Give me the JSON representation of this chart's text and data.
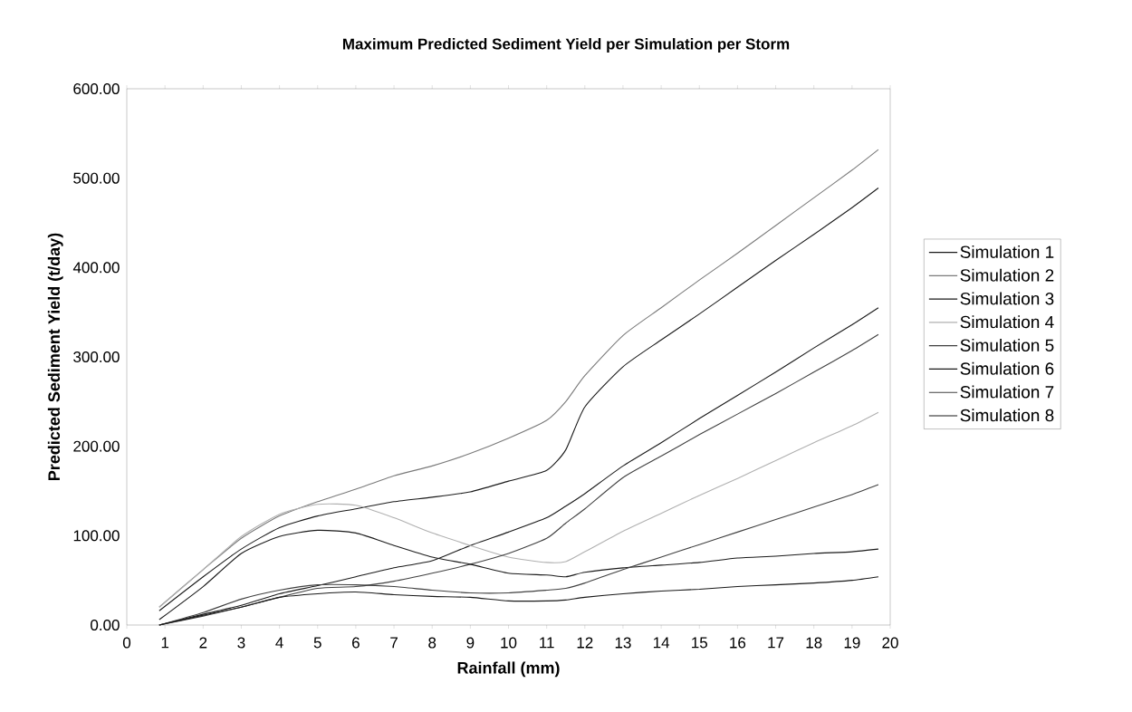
{
  "chart_data": {
    "type": "line",
    "title": "Maximum Predicted Sediment Yield per Simulation per Storm",
    "xlabel": "Rainfall (mm)",
    "ylabel": "Predicted Sediment Yield (t/day)",
    "x": [
      0.85,
      2,
      3,
      4,
      5,
      6,
      7,
      8,
      9,
      10,
      11,
      11.5,
      12,
      13,
      14,
      15,
      16,
      17,
      18,
      19,
      19.69
    ],
    "xlim": [
      0,
      20
    ],
    "xticks": [
      0,
      1,
      2,
      3,
      4,
      5,
      6,
      7,
      8,
      9,
      10,
      11,
      12,
      13,
      14,
      15,
      16,
      17,
      18,
      19,
      20
    ],
    "ylim": [
      0,
      600
    ],
    "yticks": [
      {
        "value": 0,
        "label": "0.00"
      },
      {
        "value": 100,
        "label": "100.00"
      },
      {
        "value": 200,
        "label": "200.00"
      },
      {
        "value": 300,
        "label": "300.00"
      },
      {
        "value": 400,
        "label": "400.00"
      },
      {
        "value": 500,
        "label": "500.00"
      },
      {
        "value": 600,
        "label": "600.00"
      }
    ],
    "legend": "right",
    "grid": false,
    "marker": "none",
    "line_style": "solid",
    "series": [
      {
        "name": "Simulation 1",
        "color": "#1a1a1a",
        "values": [
          16,
          54,
          85,
          109,
          122,
          130,
          138,
          143,
          149,
          161,
          173,
          196,
          244,
          289,
          319,
          348,
          378,
          408,
          437,
          467,
          489
        ]
      },
      {
        "name": "Simulation 2",
        "color": "#7a7a7a",
        "values": [
          20,
          62,
          97,
          122,
          138,
          152,
          167,
          178,
          192,
          209,
          229,
          250,
          279,
          324,
          355,
          386,
          416,
          447,
          478,
          509,
          532
        ]
      },
      {
        "name": "Simulation 3",
        "color": "#1a1a1a",
        "values": [
          0,
          12,
          22,
          35,
          44,
          54,
          64,
          72,
          89,
          104,
          120,
          133,
          147,
          178,
          204,
          231,
          257,
          283,
          310,
          336,
          355
        ]
      },
      {
        "name": "Simulation 4",
        "color": "#b0b0b0",
        "values": [
          20,
          62,
          99,
          124,
          135,
          134,
          120,
          103,
          89,
          76,
          70,
          71,
          82,
          105,
          125,
          145,
          164,
          184,
          204,
          223,
          238
        ]
      },
      {
        "name": "Simulation 5",
        "color": "#404040",
        "values": [
          0,
          10,
          20,
          31,
          41,
          43,
          49,
          58,
          68,
          80,
          97,
          114,
          130,
          165,
          189,
          213,
          236,
          259,
          283,
          307,
          325
        ]
      },
      {
        "name": "Simulation 6",
        "color": "#1a1a1a",
        "values": [
          6,
          43,
          80,
          99,
          106,
          103,
          89,
          76,
          68,
          58,
          56,
          54,
          59,
          64,
          67,
          70,
          75,
          77,
          80,
          82,
          85
        ]
      },
      {
        "name": "Simulation 7",
        "color": "#404040",
        "values": [
          0,
          14,
          29,
          39,
          45,
          45,
          43,
          39,
          36,
          36,
          39,
          41,
          47,
          62,
          76,
          90,
          104,
          118,
          132,
          146,
          157
        ]
      },
      {
        "name": "Simulation 8",
        "color": "#1a1a1a",
        "values": [
          0,
          11,
          20,
          31,
          35,
          37,
          34,
          32,
          31,
          27,
          27,
          28,
          31,
          35,
          38,
          40,
          43,
          45,
          47,
          50,
          54
        ]
      }
    ]
  }
}
